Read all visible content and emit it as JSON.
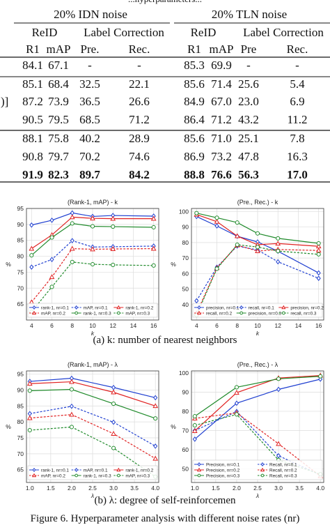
{
  "table": {
    "top_cut_text": "...hyperparameters...",
    "group_headers": [
      "20% IDN noise",
      "20% TLN noise"
    ],
    "sub_headers": [
      "ReID",
      "Label Correction",
      "ReID",
      "Label Correction"
    ],
    "col_headers": [
      "R1",
      "mAP",
      "Pre.",
      "Rec.",
      "R1",
      "mAP",
      "Pre",
      "Rec."
    ],
    "left_bracket": ")]",
    "rows": [
      [
        "84.1",
        "67.1",
        "-",
        "-",
        "85.3",
        "69.9",
        "-",
        "-"
      ],
      [
        "85.1",
        "68.4",
        "32.5",
        "22.1",
        "85.6",
        "71.4",
        "25.6",
        "5.4"
      ],
      [
        "87.2",
        "73.9",
        "36.5",
        "26.6",
        "84.9",
        "67.0",
        "23.0",
        "6.9"
      ],
      [
        "90.5",
        "79.5",
        "68.5",
        "71.2",
        "86.4",
        "71.2",
        "43.2",
        "11.2"
      ],
      [
        "88.1",
        "75.8",
        "40.2",
        "28.9",
        "85.6",
        "71.0",
        "25.1",
        "7.8"
      ],
      [
        "90.8",
        "79.7",
        "70.2",
        "74.6",
        "86.9",
        "73.2",
        "47.8",
        "16.3"
      ],
      [
        "91.9",
        "82.3",
        "89.7",
        "84.2",
        "88.8",
        "76.6",
        "56.3",
        "17.0"
      ]
    ]
  },
  "caption_a": "(a)  k: number of nearest neighbors",
  "caption_b": "(b)  λ: degree of self-reinforcemen",
  "caption_fig": "Figure 6. Hyperparameter analysis with different noise rates (nr)",
  "colors": {
    "blue": "#1f3fd0",
    "red": "#e02020",
    "green": "#1f8a2a"
  },
  "chart_data": [
    {
      "type": "line",
      "title": "(Rank-1, mAP) - k",
      "xlabel": "k",
      "ylabel": "%",
      "x": [
        4,
        6,
        8,
        10,
        12,
        16
      ],
      "x_ticks": [
        "4",
        "6",
        "8",
        "10",
        "12",
        "14",
        "16"
      ],
      "x_tick_values": [
        4,
        6,
        8,
        10,
        12,
        14,
        16
      ],
      "xlim": [
        3.5,
        16.5
      ],
      "ylim": [
        60,
        95
      ],
      "y_ticks": [
        65,
        70,
        75,
        80,
        85,
        90,
        95
      ],
      "legend_position": "bottom",
      "legend_cols": 3,
      "series": [
        {
          "name": "rank-1, nr=0.1",
          "color": "#1f3fd0",
          "dash": false,
          "marker": "diamond",
          "values": [
            89.8,
            91.3,
            93.6,
            92.5,
            92.8,
            92.6
          ]
        },
        {
          "name": "mAP,  nr=0.1",
          "color": "#1f3fd0",
          "dash": true,
          "marker": "diamond",
          "values": [
            76.6,
            79.0,
            84.9,
            82.9,
            83.0,
            83.2
          ]
        },
        {
          "name": "rank-1, nr=0.2",
          "color": "#e02020",
          "dash": false,
          "marker": "triangle",
          "values": [
            82.4,
            86.7,
            92.3,
            91.9,
            91.8,
            91.8
          ]
        },
        {
          "name": "mAP,  nr=0.2",
          "color": "#e02020",
          "dash": true,
          "marker": "triangle",
          "values": [
            65.6,
            73.5,
            82.4,
            82.2,
            82.3,
            82.4
          ]
        },
        {
          "name": "rank-1, nr=0.3",
          "color": "#1f8a2a",
          "dash": false,
          "marker": "circle",
          "values": [
            80.3,
            85.9,
            90.3,
            89.4,
            89.3,
            89.1
          ]
        },
        {
          "name": "mAP,  nr=0.3",
          "color": "#1f8a2a",
          "dash": true,
          "marker": "circle",
          "values": [
            62.6,
            70.4,
            78.2,
            77.5,
            77.3,
            77.1
          ]
        }
      ]
    },
    {
      "type": "line",
      "title": "(Pre., Rec.) - k",
      "xlabel": "k",
      "ylabel": "%",
      "x": [
        4,
        6,
        8,
        10,
        12,
        16
      ],
      "x_ticks": [
        "4",
        "6",
        "8",
        "10",
        "12",
        "14",
        "16"
      ],
      "x_tick_values": [
        4,
        6,
        8,
        10,
        12,
        14,
        16
      ],
      "xlim": [
        3.5,
        16.5
      ],
      "ylim": [
        30,
        102
      ],
      "y_ticks": [
        40,
        50,
        60,
        70,
        80,
        90,
        100
      ],
      "legend_position": "bottom",
      "legend_cols": 3,
      "series": [
        {
          "name": "precision, nr=0.1",
          "color": "#1f3fd0",
          "dash": false,
          "marker": "diamond",
          "values": [
            96.8,
            90.7,
            84.1,
            80.4,
            74.4,
            60.4
          ]
        },
        {
          "name": "recall,  nr=0.1",
          "color": "#1f3fd0",
          "dash": true,
          "marker": "diamond",
          "values": [
            42.4,
            64.1,
            77.8,
            75.2,
            67.6,
            56.9
          ]
        },
        {
          "name": "precision, nr=0.2",
          "color": "#e02020",
          "dash": false,
          "marker": "triangle",
          "values": [
            98.1,
            93.5,
            84.2,
            78.6,
            79.4,
            77.6
          ]
        },
        {
          "name": "recall,  nr=0.2",
          "color": "#e02020",
          "dash": true,
          "marker": "triangle",
          "values": [
            34.4,
            63.6,
            78.3,
            74.5,
            75.5,
            74.9
          ]
        },
        {
          "name": "precision, nr=0.3",
          "color": "#1f8a2a",
          "dash": false,
          "marker": "circle",
          "values": [
            99.0,
            96.0,
            92.9,
            85.9,
            82.7,
            79.5
          ]
        },
        {
          "name": "recall,  nr=0.3",
          "color": "#1f8a2a",
          "dash": true,
          "marker": "circle",
          "values": [
            33.1,
            63.1,
            78.6,
            77.1,
            74.5,
            72.4
          ]
        }
      ]
    },
    {
      "type": "line",
      "title": "(Rank-1, mAP) - λ",
      "xlabel": "λ",
      "ylabel": "%",
      "x": [
        1.0,
        2.0,
        3.0,
        4.0
      ],
      "x_ticks": [
        "1.0",
        "1.5",
        "2.0",
        "2.5",
        "3.0",
        "3.5",
        "4.0"
      ],
      "x_tick_values": [
        1.0,
        1.5,
        2.0,
        2.5,
        3.0,
        3.5,
        4.0
      ],
      "xlim": [
        0.92,
        4.08
      ],
      "ylim": [
        61,
        96
      ],
      "y_ticks": [
        65,
        70,
        75,
        80,
        85,
        90,
        95
      ],
      "legend_position": "bottom",
      "legend_cols": 3,
      "series": [
        {
          "name": "rank-1, nr=0.1",
          "color": "#1f3fd0",
          "dash": false,
          "marker": "diamond",
          "values": [
            92.7,
            93.7,
            90.8,
            87.6
          ]
        },
        {
          "name": "mAP,  nr=0.1",
          "color": "#1f3fd0",
          "dash": true,
          "marker": "diamond",
          "values": [
            82.6,
            84.9,
            79.9,
            72.4
          ]
        },
        {
          "name": "rank-1, nr=0.2",
          "color": "#e02020",
          "dash": false,
          "marker": "triangle",
          "values": [
            92.0,
            92.6,
            89.3,
            85.0
          ]
        },
        {
          "name": "mAP,  nr=0.2",
          "color": "#e02020",
          "dash": true,
          "marker": "triangle",
          "values": [
            81.2,
            82.3,
            76.3,
            68.5
          ]
        },
        {
          "name": "rank-1, nr=0.3",
          "color": "#1f8a2a",
          "dash": false,
          "marker": "circle",
          "values": [
            89.8,
            90.2,
            85.7,
            81.1
          ]
        },
        {
          "name": "mAP,  nr=0.3",
          "color": "#1f8a2a",
          "dash": true,
          "marker": "circle",
          "values": [
            77.4,
            78.4,
            71.8,
            62.8
          ]
        }
      ]
    },
    {
      "type": "line",
      "title": "(Pre., Rec.) - λ",
      "xlabel": "λ",
      "ylabel": "%",
      "x": [
        1.0,
        2.0,
        3.0,
        4.0
      ],
      "x_ticks": [
        "1.0",
        "1.5",
        "2.0",
        "2.5",
        "3.0",
        "3.5",
        "4.0"
      ],
      "x_tick_values": [
        1.0,
        1.5,
        2.0,
        2.5,
        3.0,
        3.5,
        4.0
      ],
      "xlim": [
        0.92,
        4.08
      ],
      "ylim": [
        43,
        101
      ],
      "y_ticks": [
        50,
        60,
        70,
        80,
        90,
        100
      ],
      "legend_position": "bottom",
      "legend_cols": 2,
      "series": [
        {
          "name": "Precision, nr=0.1",
          "color": "#1f3fd0",
          "dash": false,
          "marker": "diamond",
          "values": [
            65.5,
            84.2,
            91.4,
            96.7
          ]
        },
        {
          "name": "Recall,  nr=0.1",
          "color": "#1f3fd0",
          "dash": true,
          "marker": "diamond",
          "values": [
            70.0,
            79.9,
            56.9,
            46.9
          ]
        },
        {
          "name": "Precision, nr=0.2",
          "color": "#e02020",
          "dash": false,
          "marker": "triangle",
          "values": [
            69.8,
            89.7,
            97.3,
            98.6
          ]
        },
        {
          "name": "Recall,  nr=0.2",
          "color": "#e02020",
          "dash": true,
          "marker": "triangle",
          "values": [
            76.3,
            79.2,
            63.1,
            46.3
          ]
        },
        {
          "name": "Precision, nr=0.3",
          "color": "#1f8a2a",
          "dash": false,
          "marker": "circle",
          "values": [
            77.4,
            92.5,
            96.9,
            98.2
          ]
        },
        {
          "name": "Recall,  nr=0.3",
          "color": "#1f8a2a",
          "dash": true,
          "marker": "circle",
          "values": [
            72.7,
            78.4,
            54.7,
            47.3
          ]
        }
      ]
    }
  ]
}
